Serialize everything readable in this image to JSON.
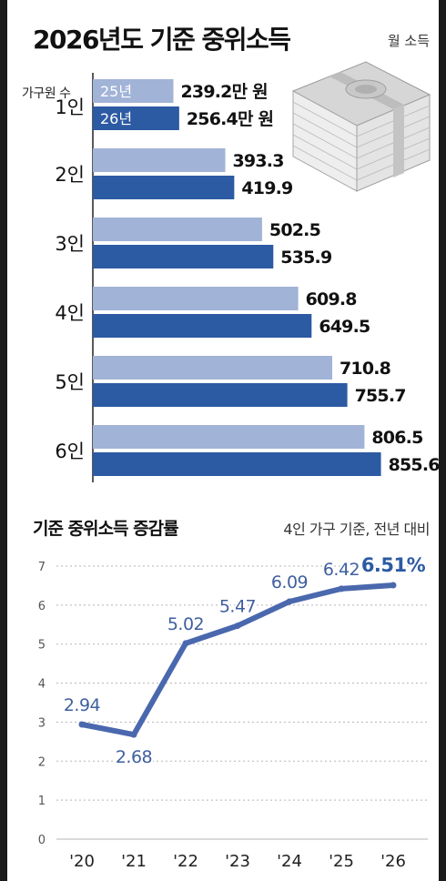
{
  "title": "2026년도 기준 중위소득",
  "unit_label": "월 소득",
  "bar_chart": {
    "axis_header": "가구원 수",
    "first_value_suffix": "만 원",
    "series": [
      {
        "name": "25년",
        "color": "#a1b3d6"
      },
      {
        "name": "26년",
        "color": "#2c5aa3"
      }
    ],
    "categories": [
      "1인",
      "2인",
      "3인",
      "4인",
      "5인",
      "6인"
    ],
    "values_2025": [
      239.2,
      393.3,
      502.5,
      609.8,
      710.8,
      806.5
    ],
    "values_2026": [
      256.4,
      419.9,
      535.9,
      649.5,
      755.7,
      855.6
    ]
  },
  "chart_data": {
    "type": "line",
    "title": "기준 중위소득 증감률",
    "subtitle": "4인 가구 기준, 전년 대비",
    "x": [
      "'20",
      "'21",
      "'22",
      "'23",
      "'24",
      "'25",
      "'26"
    ],
    "values": [
      2.94,
      2.68,
      5.02,
      5.47,
      6.09,
      6.42,
      6.51
    ],
    "value_labels": [
      "2.94",
      "2.68",
      "5.02",
      "5.47",
      "6.09",
      "6.42",
      "6.51%"
    ],
    "highlight_index": 6,
    "ylim": [
      0,
      7
    ],
    "y_ticks": [
      "0",
      "1",
      "2",
      "3",
      "4",
      "5",
      "6",
      "7"
    ],
    "grid": true,
    "line_color": "#4a68ad",
    "highlight_color": "#2c5aa3"
  }
}
